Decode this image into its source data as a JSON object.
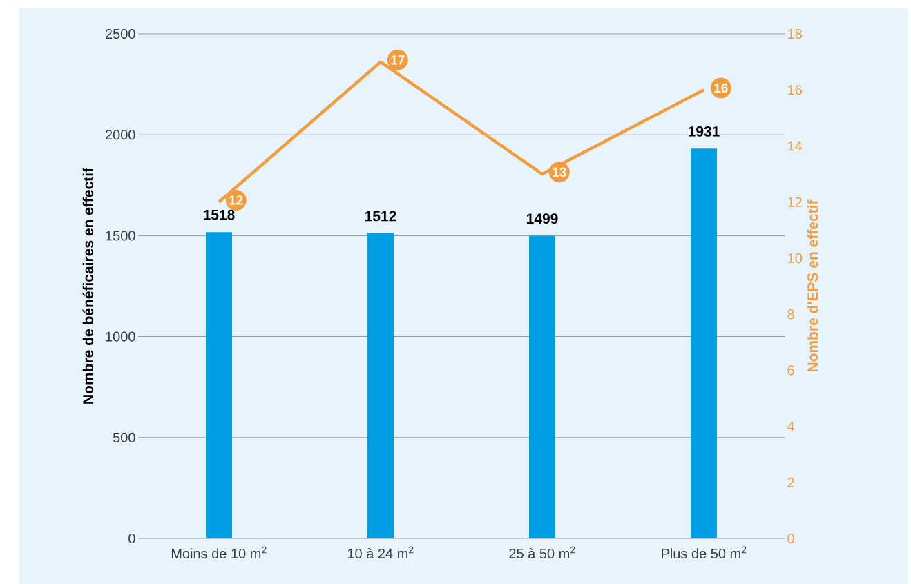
{
  "chart_data": {
    "type": "bar",
    "categories": [
      "Moins de 10 m$^{2}$",
      "10 à 24 m$^{2}$",
      "25 à 50 m$^{2}$",
      "Plus de 50 m$^{2}$"
    ],
    "series": [
      {
        "color": "#009fe3",
        "values": [
          1518,
          1512,
          1499,
          1931
        ]
      },
      {
        "type": "line",
        "axis": "y2",
        "marker": "none",
        "color": "#f39c3b",
        "values": [
          12,
          17,
          13,
          16
        ]
      }
    ],
    "ylabel": "Nombre de bénéficaires en effectif",
    "y2label": "Nombre d'EPS en effectif",
    "ylim": [
      0,
      2500
    ],
    "yticks": [
      0,
      500,
      1000,
      1500,
      2000,
      2500
    ],
    "y2lim": [
      0,
      18
    ],
    "y2ticks": [
      0,
      2,
      4,
      6,
      8,
      10,
      12,
      14,
      16,
      18
    ],
    "grid": "y",
    "data_labels": true
  }
}
